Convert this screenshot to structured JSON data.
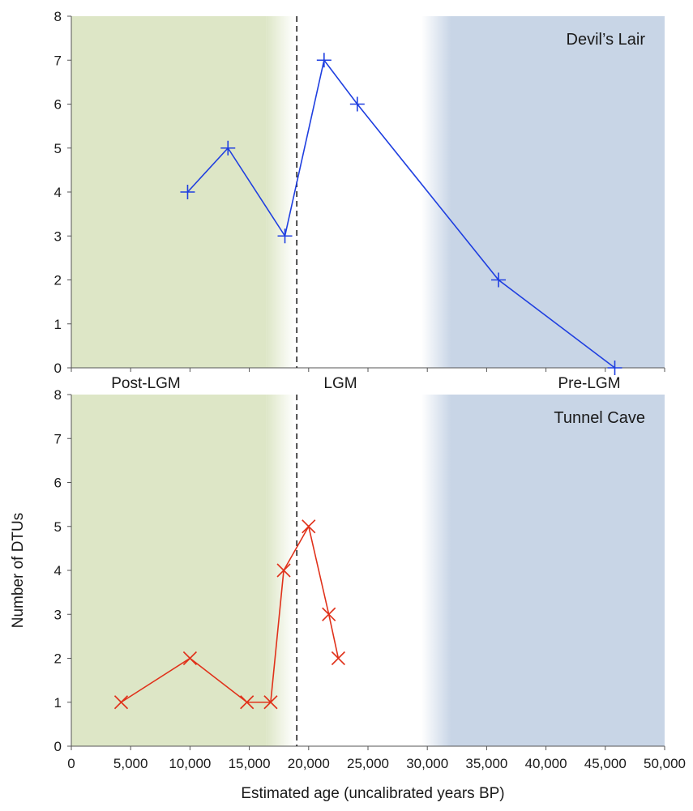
{
  "chart_data": {
    "type": "line",
    "xlabel": "Estimated age (uncalibrated years BP)",
    "ylabel": "Number of DTUs",
    "xlim": [
      0,
      50000
    ],
    "ylim": [
      0,
      8
    ],
    "x_ticks": [
      "0",
      "5,000",
      "10,000",
      "15,000",
      "20,000",
      "25,000",
      "30,000",
      "35,000",
      "40,000",
      "45,000",
      "50,000"
    ],
    "y_ticks": [
      "0",
      "1",
      "2",
      "3",
      "4",
      "5",
      "6",
      "7",
      "8"
    ],
    "lgm_boundary_x": 19000,
    "period_labels": [
      "Post-LGM",
      "LGM",
      "Pre-LGM"
    ],
    "bands": [
      {
        "period": "Post-LGM",
        "from": 0,
        "to": 19000,
        "color": "#dde6c6"
      },
      {
        "period": "Pre-LGM",
        "from": 29500,
        "to": 50000,
        "color": "#c8d5e6"
      }
    ],
    "panels": [
      {
        "title": "Devil’s Lair",
        "marker": "plus",
        "color": "#1f3fe0",
        "points": [
          [
            9800,
            4
          ],
          [
            13200,
            5
          ],
          [
            18000,
            3
          ],
          [
            21300,
            7
          ],
          [
            24100,
            6
          ],
          [
            36000,
            2
          ],
          [
            45800,
            0
          ]
        ]
      },
      {
        "title": "Tunnel Cave",
        "marker": "x",
        "color": "#e0311a",
        "points": [
          [
            4200,
            1
          ],
          [
            10000,
            2
          ],
          [
            14800,
            1
          ],
          [
            16800,
            1
          ],
          [
            17900,
            4
          ],
          [
            20000,
            5
          ],
          [
            21700,
            3
          ],
          [
            22500,
            2
          ]
        ]
      }
    ],
    "grid": false
  }
}
